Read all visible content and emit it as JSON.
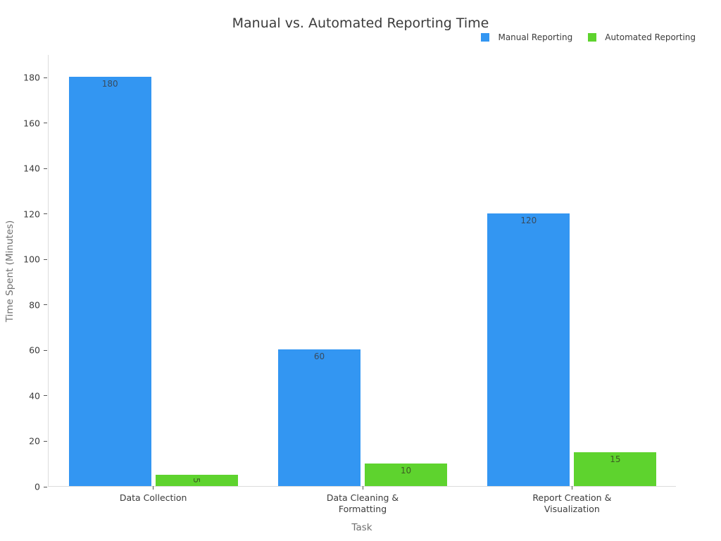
{
  "chart_data": {
    "type": "bar",
    "title": "Manual vs. Automated Reporting Time",
    "xlabel": "Task",
    "ylabel": "Time Spent (Minutes)",
    "categories": [
      "Data Collection",
      "Data Cleaning &\nFormatting",
      "Report Creation &\nVisualization"
    ],
    "series": [
      {
        "name": "Manual Reporting",
        "color": "#3396f2",
        "label_color": "#384b5f",
        "values": [
          180,
          60,
          120
        ]
      },
      {
        "name": "Automated Reporting",
        "color": "#5ed32e",
        "label_color": "#3c5c22",
        "values": [
          5,
          10,
          15
        ]
      }
    ],
    "bar_labels": [
      "180",
      "60",
      "120",
      "5",
      "10",
      "15"
    ],
    "ylim": [
      0,
      190
    ],
    "yticks": [
      0,
      20,
      40,
      60,
      80,
      100,
      120,
      140,
      160,
      180
    ],
    "grid": false,
    "legend_position": "top-right",
    "colors": {
      "axis_line": "#dcdcdc",
      "tick_mark": "#555555",
      "tick_label": "#3b3b3b",
      "axis_title": "#707070",
      "title": "#3b3b3b",
      "background": "#ffffff"
    }
  }
}
